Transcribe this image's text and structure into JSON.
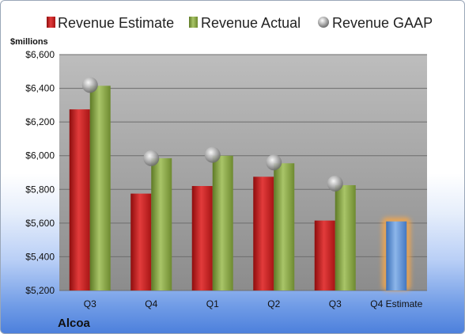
{
  "chart_data": {
    "type": "bar",
    "company": "Alcoa",
    "unit_label": "$millions",
    "categories": [
      "Q3",
      "Q4",
      "Q1",
      "Q2",
      "Q3",
      "Q4 Estimate"
    ],
    "series": [
      {
        "name": "Revenue Estimate",
        "type": "bar",
        "values": [
          6275,
          5775,
          5820,
          5875,
          5615,
          null
        ],
        "color": "#cc1f1f"
      },
      {
        "name": "Revenue Actual",
        "type": "bar",
        "values": [
          6415,
          5985,
          6000,
          5955,
          5825,
          null
        ],
        "color": "#8fae4a"
      },
      {
        "name": "Revenue GAAP",
        "type": "marker",
        "values": [
          6420,
          5985,
          6005,
          5960,
          5835,
          null
        ],
        "color": "#9a9a9a"
      }
    ],
    "q4_estimate": {
      "value": 5610,
      "color": "#5b92d6",
      "highlight": "#f3a64b"
    },
    "ylim": [
      5200,
      6600
    ],
    "yticks": [
      5200,
      5400,
      5600,
      5800,
      6000,
      6200,
      6400,
      6600
    ],
    "ytick_labels": [
      "$5,200",
      "$5,400",
      "$5,600",
      "$5,800",
      "$6,000",
      "$6,200",
      "$6,400",
      "$6,600"
    ],
    "grid": true,
    "legend_position": "top"
  }
}
